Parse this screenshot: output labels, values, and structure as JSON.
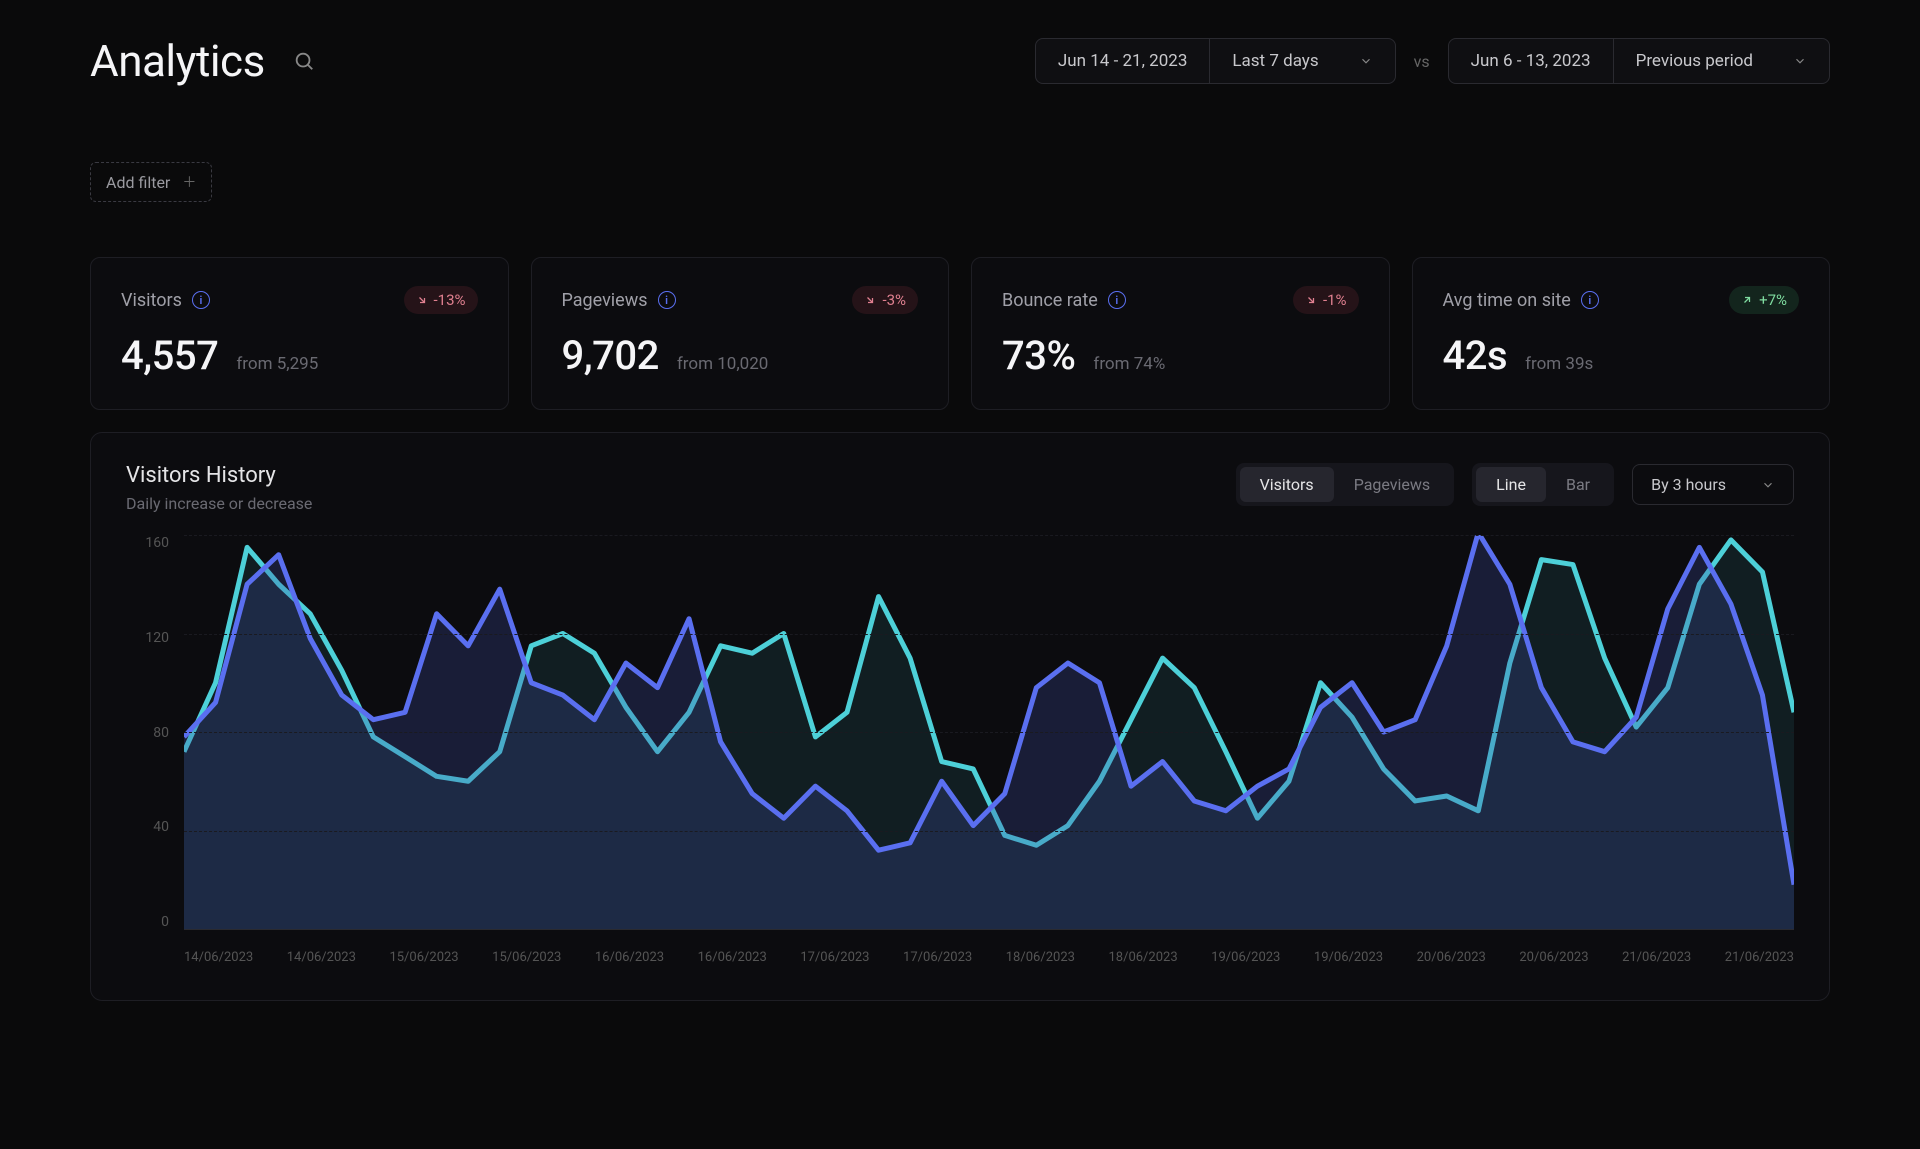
{
  "header": {
    "title": "Analytics",
    "range_a": "Jun 14 - 21, 2023",
    "range_a_preset": "Last 7 days",
    "vs": "vs",
    "range_b": "Jun 6 - 13, 2023",
    "range_b_preset": "Previous period"
  },
  "filter": {
    "add_label": "Add filter"
  },
  "metrics": [
    {
      "label": "Visitors",
      "value": "4,557",
      "from": "from 5,295",
      "delta": "-13%",
      "direction": "neg"
    },
    {
      "label": "Pageviews",
      "value": "9,702",
      "from": "from 10,020",
      "delta": "-3%",
      "direction": "neg"
    },
    {
      "label": "Bounce rate",
      "value": "73%",
      "from": "from 74%",
      "delta": "-1%",
      "direction": "neg"
    },
    {
      "label": "Avg time on site",
      "value": "42s",
      "from": "from 39s",
      "delta": "+7%",
      "direction": "pos"
    }
  ],
  "chart": {
    "title": "Visitors History",
    "subtitle": "Daily increase or decrease",
    "tab_metric": [
      "Visitors",
      "Pageviews"
    ],
    "tab_metric_active": 0,
    "tab_mode": [
      "Line",
      "Bar"
    ],
    "tab_mode_active": 0,
    "interval": "By 3 hours",
    "y_ticks": [
      "160",
      "120",
      "80",
      "40",
      "0"
    ],
    "y_max": 160,
    "x_labels": [
      "14/06/2023",
      "14/06/2023",
      "15/06/2023",
      "15/06/2023",
      "16/06/2023",
      "16/06/2023",
      "17/06/2023",
      "17/06/2023",
      "18/06/2023",
      "18/06/2023",
      "19/06/2023",
      "19/06/2023",
      "20/06/2023",
      "20/06/2023",
      "21/06/2023",
      "21/06/2023"
    ],
    "series": [
      {
        "name": "current",
        "color": "#5a6ff0",
        "fill": "rgba(60,75,160,0.28)",
        "values": [
          78,
          92,
          140,
          152,
          118,
          95,
          85,
          88,
          128,
          115,
          138,
          100,
          95,
          85,
          108,
          98,
          126,
          76,
          55,
          45,
          58,
          48,
          32,
          35,
          60,
          42,
          55,
          98,
          108,
          100,
          58,
          68,
          52,
          48,
          58,
          65,
          90,
          100,
          80,
          85,
          115,
          161,
          140,
          98,
          76,
          72,
          86,
          130,
          155,
          132,
          95,
          18
        ]
      },
      {
        "name": "previous",
        "color": "#4dd0d8",
        "fill": "rgba(55,165,175,0.12)",
        "values": [
          72,
          100,
          155,
          140,
          128,
          105,
          78,
          70,
          62,
          60,
          72,
          115,
          120,
          112,
          90,
          72,
          88,
          115,
          112,
          120,
          78,
          88,
          135,
          110,
          68,
          65,
          38,
          34,
          42,
          60,
          85,
          110,
          98,
          72,
          45,
          60,
          100,
          86,
          65,
          52,
          54,
          48,
          108,
          150,
          148,
          110,
          82,
          98,
          140,
          158,
          145,
          88
        ]
      }
    ]
  },
  "colors": {
    "bg": "#0a0a0b",
    "panel": "#0c0c0f",
    "border": "#1e1e24",
    "text": "#e5e5e7",
    "muted": "#6a6a72"
  }
}
